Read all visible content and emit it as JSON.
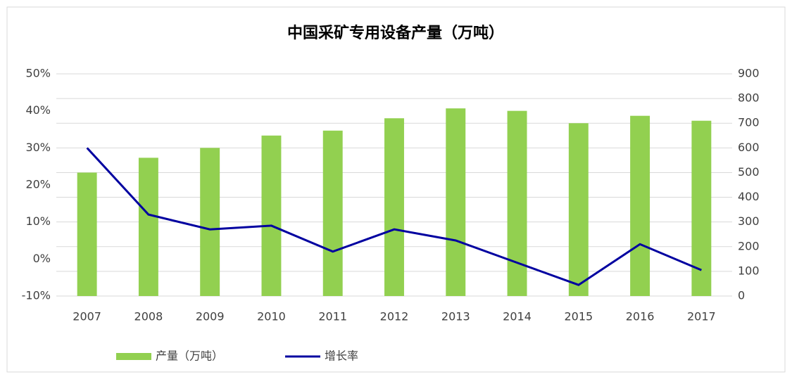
{
  "chart_data": {
    "type": "bar-line",
    "title": "中国采矿专用设备产量（万吨）",
    "categories": [
      "2007",
      "2008",
      "2009",
      "2010",
      "2011",
      "2012",
      "2013",
      "2014",
      "2015",
      "2016",
      "2017"
    ],
    "series": [
      {
        "name": "产量（万吨）",
        "type": "bar",
        "axis": "y2",
        "color": "#92d050",
        "values": [
          500,
          560,
          600,
          650,
          670,
          720,
          760,
          750,
          700,
          730,
          710
        ]
      },
      {
        "name": "增长率",
        "type": "line",
        "axis": "y",
        "color": "#0000a0",
        "values": [
          30,
          12,
          8,
          9,
          2,
          8,
          5,
          -1,
          -7,
          4,
          -3
        ]
      }
    ],
    "ylim": [
      -10,
      50
    ],
    "yticks": [
      {
        "value": -10,
        "label": "-10%"
      },
      {
        "value": 0,
        "label": "0%"
      },
      {
        "value": 10,
        "label": "10%"
      },
      {
        "value": 20,
        "label": "20%"
      },
      {
        "value": 30,
        "label": "30%"
      },
      {
        "value": 40,
        "label": "40%"
      },
      {
        "value": 50,
        "label": "50%"
      }
    ],
    "y2lim": [
      0,
      900
    ],
    "y2ticks": [
      0,
      100,
      200,
      300,
      400,
      500,
      600,
      700,
      800,
      900
    ],
    "grid": true
  }
}
